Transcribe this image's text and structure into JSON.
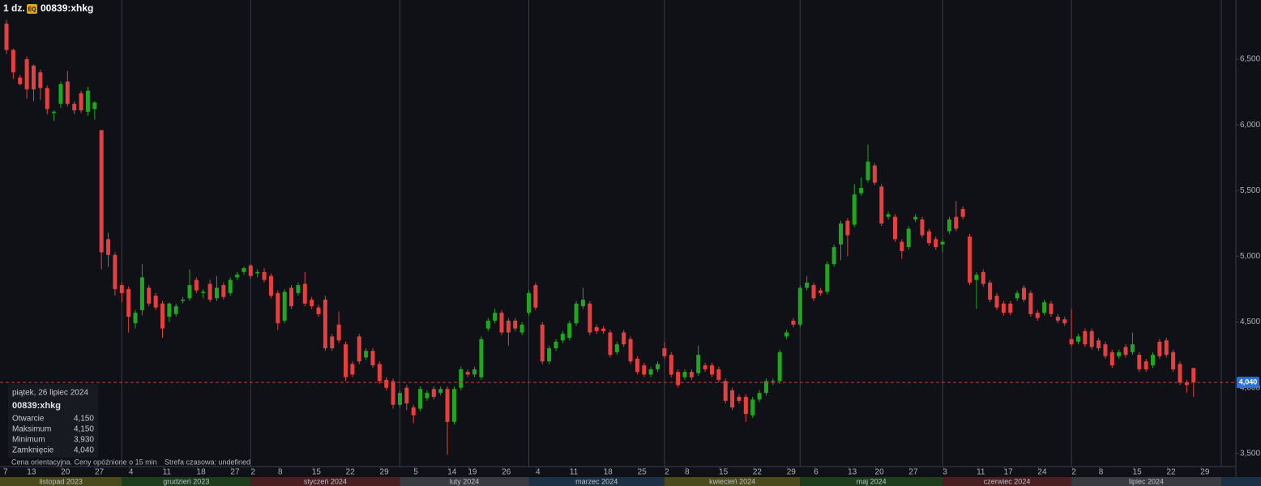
{
  "header": {
    "interval": "1 dz.",
    "badge": "EQ",
    "symbol": "00839:xhkg"
  },
  "chart_data": {
    "type": "candlestick",
    "up_color": "#1fa81f",
    "down_color": "#e5403f",
    "ylim": [
      3400,
      6950
    ],
    "yticks": [
      {
        "value": 3500,
        "label": "3,500"
      },
      {
        "value": 4000,
        "label": "4,000"
      },
      {
        "value": 4500,
        "label": "4,500"
      },
      {
        "value": 5000,
        "label": "5,000"
      },
      {
        "value": 5500,
        "label": "5,500"
      },
      {
        "value": 6000,
        "label": "6,000"
      },
      {
        "value": 6500,
        "label": "6,500"
      }
    ],
    "xticks": [
      {
        "value": 0,
        "label": "7"
      },
      {
        "value": 3.5,
        "label": "13"
      },
      {
        "value": 8.5,
        "label": "20"
      },
      {
        "value": 13.5,
        "label": "27"
      },
      {
        "value": 18.5,
        "label": "4"
      },
      {
        "value": 23.5,
        "label": "11"
      },
      {
        "value": 28.5,
        "label": "18"
      },
      {
        "value": 33.5,
        "label": "27"
      },
      {
        "value": 36.5,
        "label": "2"
      },
      {
        "value": 40.5,
        "label": "8"
      },
      {
        "value": 45.5,
        "label": "15"
      },
      {
        "value": 50.5,
        "label": "22"
      },
      {
        "value": 55.5,
        "label": "29"
      },
      {
        "value": 60.5,
        "label": "5"
      },
      {
        "value": 65.5,
        "label": "14"
      },
      {
        "value": 68.5,
        "label": "19"
      },
      {
        "value": 73.5,
        "label": "26"
      },
      {
        "value": 78.5,
        "label": "4"
      },
      {
        "value": 83.5,
        "label": "11"
      },
      {
        "value": 88.5,
        "label": "18"
      },
      {
        "value": 93.5,
        "label": "25"
      },
      {
        "value": 97.5,
        "label": "2"
      },
      {
        "value": 100.5,
        "label": "8"
      },
      {
        "value": 105.5,
        "label": "15"
      },
      {
        "value": 110.5,
        "label": "22"
      },
      {
        "value": 115.5,
        "label": "29"
      },
      {
        "value": 119.5,
        "label": "6"
      },
      {
        "value": 124.5,
        "label": "13"
      },
      {
        "value": 128.5,
        "label": "20"
      },
      {
        "value": 133.5,
        "label": "27"
      },
      {
        "value": 138.5,
        "label": "3"
      },
      {
        "value": 143.5,
        "label": "11"
      },
      {
        "value": 147.5,
        "label": "17"
      },
      {
        "value": 152.5,
        "label": "24"
      },
      {
        "value": 157.5,
        "label": "2"
      },
      {
        "value": 161.5,
        "label": "8"
      },
      {
        "value": 166.5,
        "label": "15"
      },
      {
        "value": 171.5,
        "label": "22"
      },
      {
        "value": 176.5,
        "label": "29"
      }
    ],
    "months": [
      {
        "label": "listopad 2023",
        "start": -1,
        "color": "#4a4a1c"
      },
      {
        "label": "grudzień 2023",
        "start": 17,
        "color": "#1d3d1d"
      },
      {
        "label": "styczeń 2024",
        "start": 36,
        "color": "#4a1f22"
      },
      {
        "label": "luty 2024",
        "start": 58,
        "color": "#3a3b40"
      },
      {
        "label": "marzec 2024",
        "start": 77,
        "color": "#1c3046"
      },
      {
        "label": "kwiecień 2024",
        "start": 97,
        "color": "#4a4a1c"
      },
      {
        "label": "maj 2024",
        "start": 117,
        "color": "#1d3d1d"
      },
      {
        "label": "czerwiec 2024",
        "start": 138,
        "color": "#4a1f22"
      },
      {
        "label": "lipiec 2024",
        "start": 157,
        "color": "#3a3b40"
      }
    ],
    "last_price": {
      "value": 4040,
      "label": "4,040"
    },
    "candles": [
      [
        6770,
        6800,
        6540,
        6570
      ],
      [
        6570,
        6580,
        6350,
        6400
      ],
      [
        6360,
        6380,
        6300,
        6310
      ],
      [
        6500,
        6520,
        6200,
        6270
      ],
      [
        6450,
        6460,
        6180,
        6270
      ],
      [
        6400,
        6420,
        6190,
        6280
      ],
      [
        6280,
        6300,
        6080,
        6120
      ],
      [
        6090,
        6110,
        6030,
        6100
      ],
      [
        6160,
        6330,
        6130,
        6310
      ],
      [
        6330,
        6410,
        6140,
        6160
      ],
      [
        6160,
        6180,
        6080,
        6110
      ],
      [
        6240,
        6260,
        6090,
        6110
      ],
      [
        6100,
        6290,
        6070,
        6260
      ],
      [
        6120,
        6180,
        6040,
        6170
      ],
      [
        5960,
        5960,
        4900,
        5030
      ],
      [
        5130,
        5180,
        4920,
        5010
      ],
      [
        5010,
        5030,
        4700,
        4750
      ],
      [
        4780,
        4800,
        4650,
        4720
      ],
      [
        4750,
        4770,
        4420,
        4540
      ],
      [
        4490,
        4590,
        4450,
        4570
      ],
      [
        4590,
        4940,
        4550,
        4840
      ],
      [
        4760,
        4780,
        4620,
        4640
      ],
      [
        4700,
        4720,
        4590,
        4610
      ],
      [
        4640,
        4660,
        4380,
        4450
      ],
      [
        4540,
        4650,
        4500,
        4640
      ],
      [
        4560,
        4640,
        4540,
        4620
      ],
      [
        4660,
        4690,
        4640,
        4670
      ],
      [
        4680,
        4900,
        4660,
        4780
      ],
      [
        4820,
        4840,
        4720,
        4740
      ],
      [
        4720,
        4750,
        4680,
        4730
      ],
      [
        4790,
        4820,
        4650,
        4670
      ],
      [
        4680,
        4850,
        4660,
        4760
      ],
      [
        4780,
        4800,
        4670,
        4690
      ],
      [
        4720,
        4840,
        4700,
        4820
      ],
      [
        4840,
        4880,
        4820,
        4860
      ],
      [
        4880,
        4920,
        4860,
        4910
      ],
      [
        4930,
        4940,
        4830,
        4850
      ],
      [
        4870,
        4900,
        4840,
        4880
      ],
      [
        4880,
        4910,
        4800,
        4820
      ],
      [
        4850,
        4870,
        4680,
        4700
      ],
      [
        4720,
        4740,
        4440,
        4490
      ],
      [
        4510,
        4750,
        4490,
        4730
      ],
      [
        4760,
        4780,
        4600,
        4620
      ],
      [
        4720,
        4800,
        4700,
        4780
      ],
      [
        4790,
        4880,
        4620,
        4640
      ],
      [
        4670,
        4690,
        4600,
        4620
      ],
      [
        4610,
        4630,
        4540,
        4560
      ],
      [
        4670,
        4700,
        4280,
        4300
      ],
      [
        4390,
        4410,
        4280,
        4300
      ],
      [
        4480,
        4580,
        4340,
        4360
      ],
      [
        4330,
        4350,
        4050,
        4080
      ],
      [
        4180,
        4200,
        4080,
        4100
      ],
      [
        4390,
        4410,
        4180,
        4200
      ],
      [
        4230,
        4300,
        4210,
        4280
      ],
      [
        4280,
        4300,
        4150,
        4170
      ],
      [
        4180,
        4200,
        4030,
        4050
      ],
      [
        4060,
        4080,
        3980,
        4000
      ],
      [
        4050,
        4070,
        3840,
        3870
      ],
      [
        3870,
        3980,
        3850,
        3960
      ],
      [
        4000,
        4020,
        3830,
        3880
      ],
      [
        3850,
        3870,
        3730,
        3790
      ],
      [
        3840,
        4010,
        3820,
        3990
      ],
      [
        3920,
        3980,
        3900,
        3960
      ],
      [
        3990,
        4010,
        3910,
        3930
      ],
      [
        3960,
        4010,
        3940,
        3990
      ],
      [
        3990,
        4010,
        3490,
        3740
      ],
      [
        3740,
        4010,
        3720,
        3990
      ],
      [
        4000,
        4160,
        3980,
        4140
      ],
      [
        4120,
        4140,
        4080,
        4100
      ],
      [
        4100,
        4160,
        4080,
        4140
      ],
      [
        4080,
        4390,
        4060,
        4370
      ],
      [
        4450,
        4530,
        4430,
        4510
      ],
      [
        4510,
        4600,
        4490,
        4570
      ],
      [
        4570,
        4590,
        4400,
        4420
      ],
      [
        4510,
        4530,
        4320,
        4420
      ],
      [
        4510,
        4530,
        4430,
        4450
      ],
      [
        4420,
        4500,
        4400,
        4480
      ],
      [
        4570,
        4740,
        4550,
        4720
      ],
      [
        4780,
        4800,
        4590,
        4610
      ],
      [
        4480,
        4500,
        4180,
        4200
      ],
      [
        4200,
        4320,
        4180,
        4300
      ],
      [
        4300,
        4370,
        4280,
        4350
      ],
      [
        4360,
        4430,
        4340,
        4410
      ],
      [
        4380,
        4510,
        4360,
        4490
      ],
      [
        4490,
        4660,
        4470,
        4640
      ],
      [
        4620,
        4760,
        4600,
        4670
      ],
      [
        4640,
        4660,
        4400,
        4420
      ],
      [
        4460,
        4480,
        4410,
        4430
      ],
      [
        4450,
        4470,
        4410,
        4430
      ],
      [
        4420,
        4440,
        4230,
        4250
      ],
      [
        4270,
        4350,
        4250,
        4330
      ],
      [
        4420,
        4440,
        4310,
        4330
      ],
      [
        4370,
        4390,
        4180,
        4200
      ],
      [
        4220,
        4240,
        4100,
        4120
      ],
      [
        4170,
        4190,
        4080,
        4100
      ],
      [
        4100,
        4160,
        4080,
        4140
      ],
      [
        4140,
        4200,
        4120,
        4180
      ],
      [
        4300,
        4350,
        4220,
        4240
      ],
      [
        4250,
        4270,
        4080,
        4100
      ],
      [
        4120,
        4140,
        4000,
        4020
      ],
      [
        4080,
        4140,
        4060,
        4120
      ],
      [
        4120,
        4140,
        4060,
        4080
      ],
      [
        4110,
        4320,
        4090,
        4250
      ],
      [
        4170,
        4190,
        4120,
        4140
      ],
      [
        4170,
        4190,
        4080,
        4100
      ],
      [
        4140,
        4160,
        4040,
        4060
      ],
      [
        4050,
        4070,
        3880,
        3900
      ],
      [
        3980,
        4000,
        3830,
        3850
      ],
      [
        3930,
        3950,
        3880,
        3900
      ],
      [
        3930,
        3950,
        3740,
        3800
      ],
      [
        3790,
        3930,
        3770,
        3910
      ],
      [
        3910,
        3980,
        3890,
        3960
      ],
      [
        3960,
        4070,
        3940,
        4050
      ],
      [
        4040,
        4070,
        4020,
        4050
      ],
      [
        4050,
        4290,
        4030,
        4270
      ],
      [
        4390,
        4440,
        4370,
        4420
      ],
      [
        4510,
        4530,
        4460,
        4480
      ],
      [
        4480,
        4780,
        4460,
        4760
      ],
      [
        4760,
        4850,
        4740,
        4800
      ],
      [
        4780,
        4800,
        4660,
        4680
      ],
      [
        4740,
        4760,
        4700,
        4720
      ],
      [
        4730,
        4960,
        4710,
        4940
      ],
      [
        4940,
        5090,
        4920,
        5070
      ],
      [
        5090,
        5270,
        4970,
        5250
      ],
      [
        5270,
        5290,
        5000,
        5160
      ],
      [
        5240,
        5550,
        5220,
        5470
      ],
      [
        5480,
        5600,
        5460,
        5520
      ],
      [
        5580,
        5850,
        5560,
        5720
      ],
      [
        5690,
        5710,
        5540,
        5560
      ],
      [
        5530,
        5550,
        5230,
        5250
      ],
      [
        5300,
        5340,
        5280,
        5320
      ],
      [
        5300,
        5320,
        5110,
        5130
      ],
      [
        5110,
        5130,
        4980,
        5040
      ],
      [
        5070,
        5230,
        5050,
        5210
      ],
      [
        5280,
        5320,
        5260,
        5300
      ],
      [
        5280,
        5300,
        5140,
        5160
      ],
      [
        5190,
        5210,
        5080,
        5100
      ],
      [
        5130,
        5150,
        5050,
        5070
      ],
      [
        5090,
        5130,
        5030,
        5110
      ],
      [
        5190,
        5300,
        5170,
        5280
      ],
      [
        5300,
        5420,
        5190,
        5210
      ],
      [
        5360,
        5380,
        5280,
        5300
      ],
      [
        5150,
        5170,
        4780,
        4800
      ],
      [
        4820,
        4880,
        4600,
        4860
      ],
      [
        4880,
        4900,
        4770,
        4790
      ],
      [
        4800,
        4820,
        4650,
        4670
      ],
      [
        4700,
        4720,
        4590,
        4610
      ],
      [
        4640,
        4660,
        4550,
        4570
      ],
      [
        4640,
        4660,
        4550,
        4570
      ],
      [
        4680,
        4740,
        4660,
        4720
      ],
      [
        4760,
        4780,
        4650,
        4670
      ],
      [
        4720,
        4740,
        4540,
        4560
      ],
      [
        4570,
        4590,
        4510,
        4530
      ],
      [
        4570,
        4670,
        4550,
        4650
      ],
      [
        4640,
        4660,
        4540,
        4560
      ],
      [
        4540,
        4560,
        4490,
        4510
      ],
      [
        4520,
        4540,
        4470,
        4490
      ],
      [
        4370,
        4600,
        4310,
        4330
      ],
      [
        4350,
        4410,
        4330,
        4390
      ],
      [
        4430,
        4450,
        4310,
        4330
      ],
      [
        4430,
        4450,
        4290,
        4310
      ],
      [
        4360,
        4380,
        4280,
        4300
      ],
      [
        4330,
        4350,
        4220,
        4240
      ],
      [
        4270,
        4290,
        4150,
        4170
      ],
      [
        4240,
        4290,
        4220,
        4270
      ],
      [
        4310,
        4330,
        4230,
        4250
      ],
      [
        4270,
        4420,
        4250,
        4330
      ],
      [
        4250,
        4270,
        4120,
        4140
      ],
      [
        4200,
        4220,
        4120,
        4140
      ],
      [
        4170,
        4270,
        4150,
        4250
      ],
      [
        4350,
        4370,
        4220,
        4240
      ],
      [
        4360,
        4380,
        4230,
        4250
      ],
      [
        4270,
        4290,
        4120,
        4140
      ],
      [
        4180,
        4200,
        4020,
        4040
      ],
      [
        4040,
        4060,
        3960,
        4020
      ],
      [
        4150,
        4150,
        3930,
        4040
      ]
    ]
  },
  "tooltip": {
    "date": "piątek, 26 lipiec 2024",
    "symbol": "00839:xhkg",
    "rows": [
      {
        "label": "Otwarcie",
        "value": "4,150"
      },
      {
        "label": "Maksimum",
        "value": "4,150"
      },
      {
        "label": "Minimum",
        "value": "3,930"
      },
      {
        "label": "Zamknięcie",
        "value": "4,040"
      }
    ]
  },
  "footer": [
    "Cena orientacyjna. Ceny opóźnione o 15 min",
    "Strefa czasowa: undefined"
  ]
}
